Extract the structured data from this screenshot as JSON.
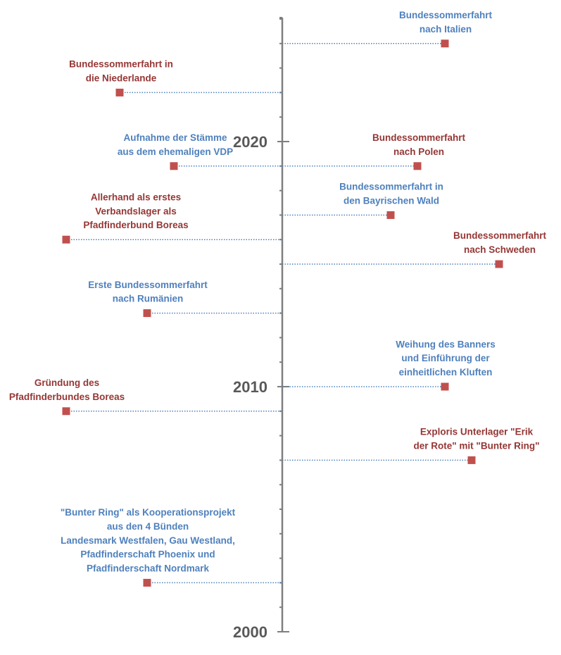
{
  "chart_data": {
    "type": "timeline",
    "axis": {
      "min": 2000,
      "max": 2025,
      "tick_step": 1,
      "labeled_years": [
        "2000",
        "2010",
        "2020"
      ]
    },
    "colors": {
      "axis": "#7f7f7f",
      "leader": "#4f81bd",
      "marker": "#c0504d",
      "text_red": "#953735",
      "text_blue": "#4f81bd",
      "year": "#595959"
    },
    "events": [
      {
        "year": 2024,
        "side": "right",
        "color": "blue",
        "lines": [
          "Bundessommerfahrt",
          "nach Italien"
        ]
      },
      {
        "year": 2022,
        "side": "left",
        "color": "red",
        "lines": [
          "Bundessommerfahrt in",
          "die Niederlande"
        ]
      },
      {
        "year": 2019,
        "side": "left",
        "color": "blue",
        "lines": [
          "Aufnahme der Stämme",
          "aus dem ehemaligen VDP"
        ]
      },
      {
        "year": 2019,
        "side": "right",
        "color": "red",
        "lines": [
          "Bundessommerfahrt",
          "nach Polen"
        ]
      },
      {
        "year": 2017,
        "side": "right",
        "color": "blue",
        "lines": [
          "Bundessommerfahrt in",
          "den Bayrischen Wald"
        ]
      },
      {
        "year": 2016,
        "side": "left",
        "color": "red",
        "lines": [
          "Allerhand als erstes",
          "Verbandslager als",
          "Pfadfinderbund Boreas"
        ]
      },
      {
        "year": 2015,
        "side": "right",
        "color": "red",
        "lines": [
          "Bundessommerfahrt",
          "nach Schweden"
        ]
      },
      {
        "year": 2013,
        "side": "left",
        "color": "blue",
        "lines": [
          "Erste Bundessommerfahrt",
          "nach Rumänien"
        ]
      },
      {
        "year": 2010,
        "side": "right",
        "color": "blue",
        "lines": [
          "Weihung des Banners",
          "und Einführung der",
          "einheitlichen Kluften"
        ]
      },
      {
        "year": 2009,
        "side": "left",
        "color": "red",
        "lines": [
          "Gründung des",
          "Pfadfinderbundes Boreas"
        ]
      },
      {
        "year": 2007,
        "side": "right",
        "color": "red",
        "lines": [
          "Exploris Unterlager \"Erik",
          "der Rote\" mit \"Bunter Ring\""
        ]
      },
      {
        "year": 2002,
        "side": "left",
        "color": "blue",
        "lines": [
          "\"Bunter Ring\" als Kooperationsprojekt",
          "aus den 4 Bünden",
          "Landesmark Westfalen, Gau Westland,",
          "Pfadfinderschaft Phoenix und",
          "Pfadfinderschaft Nordmark"
        ]
      }
    ]
  }
}
